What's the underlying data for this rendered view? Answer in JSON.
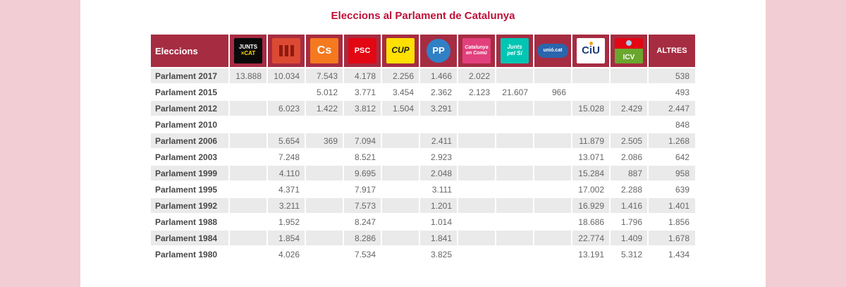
{
  "page": {
    "title": "Eleccions al Parlament de Catalunya"
  },
  "colors": {
    "header_red": "#a62c42",
    "title_red": "#bc1139",
    "stripe_gray": "#eaeaea",
    "page_pink": "#f2cdd3"
  },
  "table": {
    "corner_label": "Eleccions",
    "altres_label": "ALTRES",
    "parties": [
      {
        "id": "jxcat",
        "name": "Junts per Catalunya",
        "icon": "jxcat-logo",
        "logo": {
          "bg": "#0a0a0a",
          "lines": [
            {
              "t": "JUNTS",
              "c": "#ffffff",
              "size": 8,
              "b": true
            },
            {
              "t": "×CAT",
              "c": "#ffd900",
              "size": 8,
              "b": true
            }
          ]
        }
      },
      {
        "id": "erc",
        "name": "Esquerra Republicana de Catalunya",
        "icon": "erc-logo",
        "logo": {
          "bg": "#dc4a33",
          "accent": "#8e1a10",
          "lines": []
        }
      },
      {
        "id": "cs",
        "name": "Ciutadans",
        "icon": "cs-logo",
        "logo": {
          "bg": "#f5791e",
          "lines": [
            {
              "t": "Cs",
              "c": "#ffffff",
              "size": 16,
              "b": true
            }
          ]
        }
      },
      {
        "id": "psc",
        "name": "Partit dels Socialistes de Catalunya",
        "icon": "psc-logo",
        "logo": {
          "bg": "#e30613",
          "lines": [
            {
              "t": "PSC",
              "c": "#ffffff",
              "size": 11,
              "b": true
            }
          ]
        }
      },
      {
        "id": "cup",
        "name": "Candidatura d'Unitat Popular",
        "icon": "cup-logo",
        "logo": {
          "bg": "#ffe000",
          "lines": [
            {
              "t": "CUP",
              "c": "#1d1d1b",
              "size": 12,
              "b": true,
              "i": true
            }
          ]
        }
      },
      {
        "id": "pp",
        "name": "Partit Popular",
        "icon": "pp-logo",
        "logo": {
          "bg": "#3080c6",
          "lines": [
            {
              "t": "PP",
              "c": "#ffffff",
              "size": 13,
              "b": true
            }
          ]
        }
      },
      {
        "id": "comuns",
        "name": "Catalunya en Comú-Podem",
        "icon": "comuns-logo",
        "logo": {
          "bg": "#e2407d",
          "lines": [
            {
              "t": "Catalunya",
              "c": "#ffffff",
              "size": 7,
              "i": true
            },
            {
              "t": "en Comú",
              "c": "#ffffff",
              "size": 7,
              "i": true
            }
          ]
        }
      },
      {
        "id": "jxsi",
        "name": "Junts pel Sí",
        "icon": "jxsi-logo",
        "logo": {
          "bg": "#00c5b3",
          "lines": [
            {
              "t": "Junts",
              "c": "#ffffff",
              "size": 8,
              "b": true,
              "i": true
            },
            {
              "t": "pel Sí",
              "c": "#ffffff",
              "size": 8,
              "b": true,
              "i": true
            }
          ]
        }
      },
      {
        "id": "unio",
        "name": "Unió.cat",
        "icon": "unio-logo",
        "logo": {
          "bg": "#2a66ad",
          "lines": [
            {
              "t": "unió.cat",
              "c": "#ffffff",
              "size": 7,
              "b": true
            }
          ]
        }
      },
      {
        "id": "ciu",
        "name": "Convergència i Unió",
        "icon": "ciu-logo",
        "logo": {
          "bg": "#ffffff",
          "accent": "#f8a01c",
          "lines": [
            {
              "t": "CiU",
              "c": "#1c3e7c",
              "size": 15,
              "b": true
            }
          ]
        }
      },
      {
        "id": "icv",
        "name": "Iniciativa per Catalunya Verds",
        "icon": "icv-logo",
        "logo": {
          "bg": "#6aa72e",
          "band": "#e30613",
          "lines": [
            {
              "t": "ICV",
              "c": "#ffffff",
              "size": 10,
              "b": true
            }
          ]
        }
      }
    ]
  },
  "chart_data": {
    "type": "table",
    "title": "Eleccions al Parlament de Catalunya",
    "row_header": "Eleccions",
    "columns": [
      "JuntsxCat",
      "ERC",
      "Cs",
      "PSC",
      "CUP",
      "PP",
      "Catalunya en Comú-Podem",
      "Junts pel Sí",
      "Unió.cat",
      "CiU",
      "ICV",
      "ALTRES"
    ],
    "rows": [
      {
        "label": "Parlament 2017",
        "values": [
          "13.888",
          "10.034",
          "7.543",
          "4.178",
          "2.256",
          "1.466",
          "2.022",
          "",
          "",
          "",
          "",
          "538"
        ]
      },
      {
        "label": "Parlament 2015",
        "values": [
          "",
          "",
          "5.012",
          "3.771",
          "3.454",
          "2.362",
          "2.123",
          "21.607",
          "966",
          "",
          "",
          "493"
        ]
      },
      {
        "label": "Parlament 2012",
        "values": [
          "",
          "6.023",
          "1.422",
          "3.812",
          "1.504",
          "3.291",
          "",
          "",
          "",
          "15.028",
          "2.429",
          "2.447"
        ]
      },
      {
        "label": "Parlament 2010",
        "values": [
          "",
          "",
          "",
          "",
          "",
          "",
          "",
          "",
          "",
          "",
          "",
          "848"
        ]
      },
      {
        "label": "Parlament 2006",
        "values": [
          "",
          "5.654",
          "369",
          "7.094",
          "",
          "2.411",
          "",
          "",
          "",
          "11.879",
          "2.505",
          "1.268"
        ]
      },
      {
        "label": "Parlament 2003",
        "values": [
          "",
          "7.248",
          "",
          "8.521",
          "",
          "2.923",
          "",
          "",
          "",
          "13.071",
          "2.086",
          "642"
        ]
      },
      {
        "label": "Parlament 1999",
        "values": [
          "",
          "4.110",
          "",
          "9.695",
          "",
          "2.048",
          "",
          "",
          "",
          "15.284",
          "887",
          "958"
        ]
      },
      {
        "label": "Parlament 1995",
        "values": [
          "",
          "4.371",
          "",
          "7.917",
          "",
          "3.111",
          "",
          "",
          "",
          "17.002",
          "2.288",
          "639"
        ]
      },
      {
        "label": "Parlament 1992",
        "values": [
          "",
          "3.211",
          "",
          "7.573",
          "",
          "1.201",
          "",
          "",
          "",
          "16.929",
          "1.416",
          "1.401"
        ]
      },
      {
        "label": "Parlament 1988",
        "values": [
          "",
          "1.952",
          "",
          "8.247",
          "",
          "1.014",
          "",
          "",
          "",
          "18.686",
          "1.796",
          "1.856"
        ]
      },
      {
        "label": "Parlament 1984",
        "values": [
          "",
          "1.854",
          "",
          "8.286",
          "",
          "1.841",
          "",
          "",
          "",
          "22.774",
          "1.409",
          "1.678"
        ]
      },
      {
        "label": "Parlament 1980",
        "values": [
          "",
          "4.026",
          "",
          "7.534",
          "",
          "3.825",
          "",
          "",
          "",
          "13.191",
          "5.312",
          "1.434"
        ]
      }
    ]
  }
}
